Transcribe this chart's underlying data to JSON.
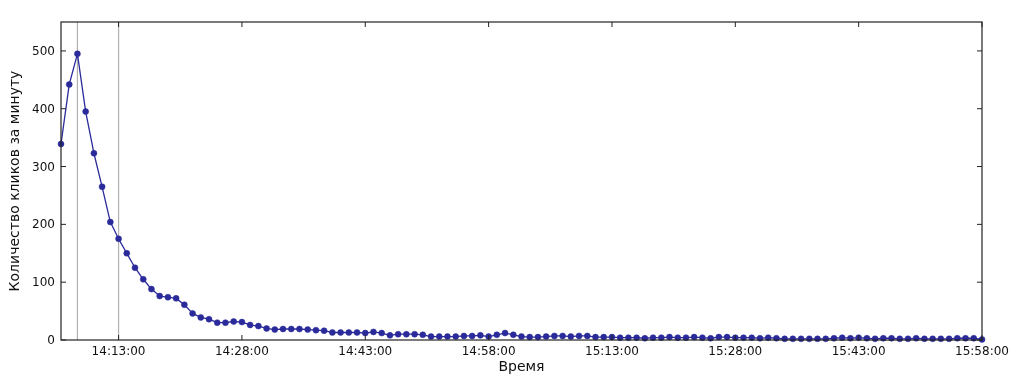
{
  "chart_data": {
    "type": "line",
    "xlabel": "Время",
    "ylabel": "Количество кликов за минуту",
    "x": [
      14.1,
      14.1167,
      14.1333,
      14.15,
      14.1667,
      14.1833,
      14.2,
      14.2167,
      14.2333,
      14.25,
      14.2667,
      14.2833,
      14.3,
      14.3167,
      14.3333,
      14.35,
      14.3667,
      14.3833,
      14.4,
      14.4167,
      14.4333,
      14.45,
      14.4667,
      14.4833,
      14.5,
      14.5167,
      14.5333,
      14.55,
      14.5667,
      14.5833,
      14.6,
      14.6167,
      14.6333,
      14.65,
      14.6667,
      14.6833,
      14.7,
      14.7167,
      14.7333,
      14.75,
      14.7667,
      14.7833,
      14.8,
      14.8167,
      14.8333,
      14.85,
      14.8667,
      14.8833,
      14.9,
      14.9167,
      14.9333,
      14.95,
      14.9667,
      14.9833,
      15.0,
      15.0167,
      15.0333,
      15.05,
      15.0667,
      15.0833,
      15.1,
      15.1167,
      15.1333,
      15.15,
      15.1667,
      15.1833,
      15.2,
      15.2167,
      15.2333,
      15.25,
      15.2667,
      15.2833,
      15.3,
      15.3167,
      15.3333,
      15.35,
      15.3667,
      15.3833,
      15.4,
      15.4167,
      15.4333,
      15.45,
      15.4667,
      15.4833,
      15.5,
      15.5167,
      15.5333,
      15.55,
      15.5667,
      15.5833,
      15.6,
      15.6167,
      15.6333,
      15.65,
      15.6667,
      15.6833,
      15.7,
      15.7167,
      15.7333,
      15.75,
      15.7667,
      15.7833,
      15.8,
      15.8167,
      15.8333,
      15.85,
      15.8667,
      15.8833,
      15.9,
      15.9167,
      15.9333,
      15.95,
      15.9667
    ],
    "series": [
      {
        "color": "#2a2a9a",
        "values": [
          339,
          442,
          495,
          395,
          323,
          265,
          204,
          175,
          150,
          125,
          105,
          88,
          76,
          74,
          72,
          61,
          46,
          39,
          36,
          30,
          30,
          32,
          31,
          26,
          24,
          20,
          18,
          19,
          19,
          19,
          18,
          17,
          16,
          13,
          13,
          13,
          13,
          12,
          14,
          12,
          8,
          10,
          10,
          10,
          9,
          6,
          6,
          6,
          6,
          7,
          7,
          8,
          6,
          9,
          12,
          9,
          6,
          5,
          5,
          6,
          7,
          7,
          6,
          7,
          7,
          5,
          5,
          5,
          4,
          4,
          4,
          3,
          4,
          4,
          5,
          4,
          4,
          5,
          4,
          3,
          5,
          5,
          4,
          4,
          4,
          3,
          4,
          3,
          2,
          2,
          2,
          2,
          2,
          2,
          3,
          4,
          3,
          4,
          3,
          2,
          3,
          3,
          2,
          2,
          3,
          2,
          2,
          2,
          2,
          3,
          3,
          3,
          1
        ]
      }
    ],
    "xlim": [
      14.1,
      15.9667
    ],
    "xticks": [
      {
        "value": 14.2167,
        "label": "14:13:00"
      },
      {
        "value": 14.4667,
        "label": "14:28:00"
      },
      {
        "value": 14.7167,
        "label": "14:43:00"
      },
      {
        "value": 14.9667,
        "label": "14:58:00"
      },
      {
        "value": 15.2167,
        "label": "15:13:00"
      },
      {
        "value": 15.4667,
        "label": "15:28:00"
      },
      {
        "value": 15.7167,
        "label": "15:43:00"
      },
      {
        "value": 15.9667,
        "label": "15:58:00"
      }
    ],
    "ylim": [
      0,
      550
    ],
    "yticks": [
      0,
      100,
      200,
      300,
      400,
      500
    ],
    "ref_lines": [
      {
        "axis": "x",
        "value": 14.1333,
        "color": "#b0b0b0"
      },
      {
        "axis": "x",
        "value": 14.2167,
        "color": "#b0b0b0"
      }
    ],
    "marker": "circle",
    "line_style": "solid"
  }
}
